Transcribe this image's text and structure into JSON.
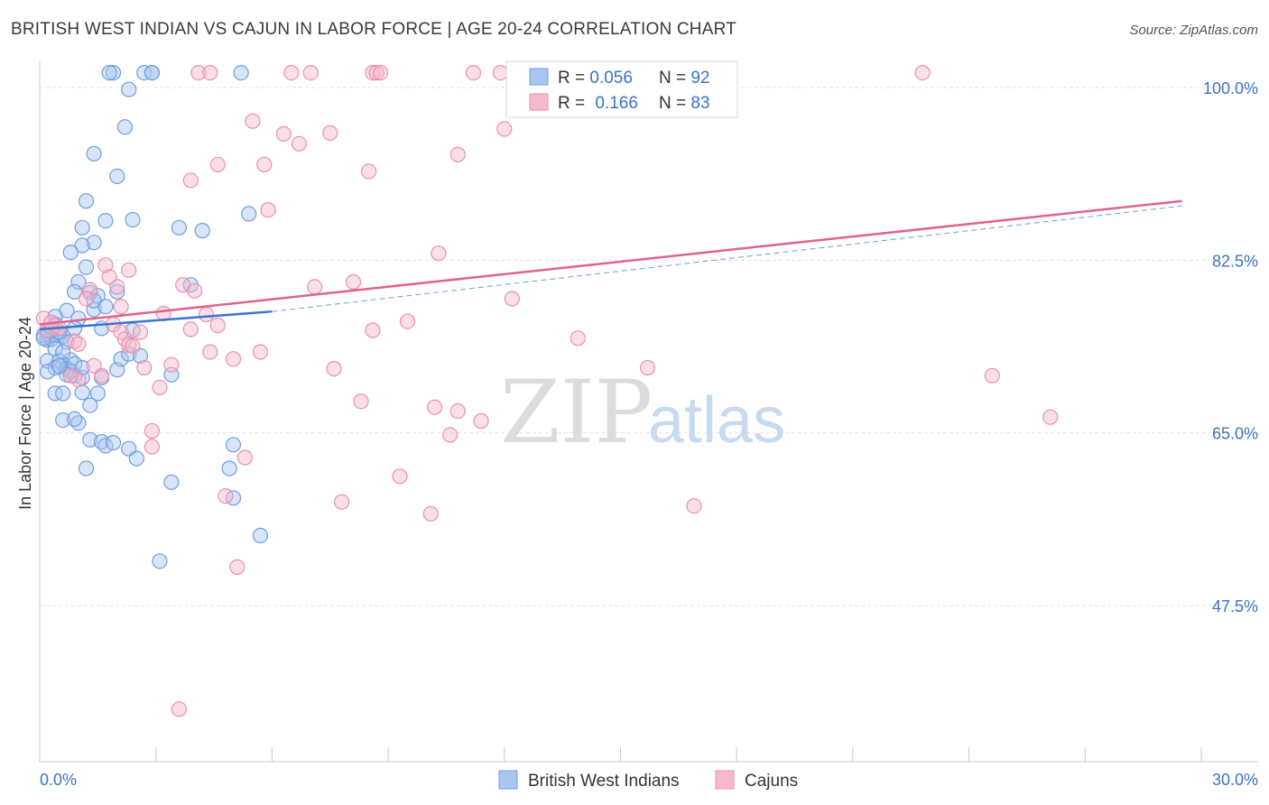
{
  "title": "BRITISH WEST INDIAN VS CAJUN IN LABOR FORCE | AGE 20-24 CORRELATION CHART",
  "source": "Source: ZipAtlas.com",
  "watermark": {
    "zip": "ZIP",
    "atlas": "atlas"
  },
  "colors": {
    "blue_fill": "#a9c6f0",
    "blue_stroke": "#6f9ee0",
    "blue_line": "#3a74cf",
    "pink_fill": "#f6b9cc",
    "pink_stroke": "#ec8fad",
    "pink_line": "#e0638f",
    "grid": "#e3e3e3",
    "axis_label": "#3b72c4"
  },
  "legend": {
    "series": [
      {
        "r_label": "R = ",
        "r_value": "0.056",
        "n_label": "N = ",
        "n_value": "92"
      },
      {
        "r_label": "R = ",
        "r_value": "0.166",
        "n_label": "N = ",
        "n_value": "83"
      }
    ]
  },
  "chart_data": {
    "type": "scatter",
    "title": "BRITISH WEST INDIAN VS CAJUN IN LABOR FORCE | AGE 20-24 CORRELATION CHART",
    "xlabel": "",
    "ylabel": "In Labor Force | Age 20-24",
    "xlim": [
      0,
      30
    ],
    "ylim": [
      30,
      101.5
    ],
    "x_tick_labels": [
      {
        "value": 0,
        "label": "0.0%"
      },
      {
        "value": 30,
        "label": "30.0%"
      }
    ],
    "x_minor_ticks": [
      3,
      6,
      9,
      12,
      15,
      18,
      21,
      24,
      27
    ],
    "y_ticks": [
      {
        "value": 100,
        "label": "100.0%"
      },
      {
        "value": 82.5,
        "label": "82.5%"
      },
      {
        "value": 65,
        "label": "65.0%"
      },
      {
        "value": 47.5,
        "label": "47.5%"
      }
    ],
    "series": [
      {
        "name": "British West Indians",
        "color": "#6f9ee0",
        "r": 0.056,
        "n": 92,
        "trend": {
          "x0": 0,
          "y0": 75.5,
          "x1": 6,
          "y1": 77.3,
          "dashed_to_x": 29.5,
          "dashed_to_y": 88.0
        },
        "points": [
          [
            1.9,
            101.5
          ],
          [
            1.8,
            101.5
          ],
          [
            2.7,
            101.5
          ],
          [
            2.9,
            101.5
          ],
          [
            2.9,
            101.5
          ],
          [
            5.2,
            101.5
          ],
          [
            2.3,
            99.8
          ],
          [
            2.2,
            96.0
          ],
          [
            1.4,
            93.3
          ],
          [
            2.0,
            91.0
          ],
          [
            1.2,
            88.5
          ],
          [
            1.7,
            86.5
          ],
          [
            2.4,
            86.6
          ],
          [
            3.6,
            85.8
          ],
          [
            4.2,
            85.5
          ],
          [
            5.4,
            87.2
          ],
          [
            1.1,
            85.8
          ],
          [
            1.4,
            84.3
          ],
          [
            1.1,
            84.0
          ],
          [
            0.8,
            83.3
          ],
          [
            1.2,
            81.8
          ],
          [
            1.0,
            80.3
          ],
          [
            0.9,
            79.3
          ],
          [
            1.3,
            79.2
          ],
          [
            1.5,
            78.9
          ],
          [
            2.0,
            79.3
          ],
          [
            1.4,
            77.5
          ],
          [
            1.4,
            78.4
          ],
          [
            0.7,
            77.4
          ],
          [
            0.4,
            76.8
          ],
          [
            1.0,
            76.6
          ],
          [
            0.4,
            76.0
          ],
          [
            0.9,
            75.6
          ],
          [
            1.6,
            75.6
          ],
          [
            2.4,
            75.4
          ],
          [
            0.2,
            75.1
          ],
          [
            0.3,
            75.0
          ],
          [
            0.5,
            74.9
          ],
          [
            0.6,
            74.8
          ],
          [
            0.2,
            74.4
          ],
          [
            0.3,
            74.5
          ],
          [
            0.7,
            74.2
          ],
          [
            0.4,
            73.5
          ],
          [
            0.2,
            72.3
          ],
          [
            0.5,
            72.3
          ],
          [
            0.8,
            72.4
          ],
          [
            0.6,
            71.9
          ],
          [
            0.4,
            71.6
          ],
          [
            0.7,
            71.5
          ],
          [
            0.8,
            71.2
          ],
          [
            0.8,
            71.3
          ],
          [
            0.2,
            71.2
          ],
          [
            0.9,
            70.8
          ],
          [
            1.1,
            70.6
          ],
          [
            1.6,
            70.6
          ],
          [
            2.0,
            71.4
          ],
          [
            2.1,
            72.5
          ],
          [
            2.3,
            73.0
          ],
          [
            2.6,
            72.8
          ],
          [
            3.4,
            70.9
          ],
          [
            3.9,
            80.0
          ],
          [
            1.1,
            69.1
          ],
          [
            0.4,
            69.0
          ],
          [
            0.6,
            69.0
          ],
          [
            1.5,
            69.0
          ],
          [
            1.3,
            67.8
          ],
          [
            0.6,
            66.3
          ],
          [
            1.0,
            66.0
          ],
          [
            0.9,
            66.4
          ],
          [
            1.3,
            64.3
          ],
          [
            1.6,
            64.1
          ],
          [
            1.7,
            63.7
          ],
          [
            1.9,
            64.0
          ],
          [
            2.3,
            63.4
          ],
          [
            2.5,
            62.4
          ],
          [
            1.2,
            61.4
          ],
          [
            5.0,
            63.8
          ],
          [
            4.9,
            61.4
          ],
          [
            3.4,
            60.0
          ],
          [
            5.0,
            58.4
          ],
          [
            5.7,
            54.6
          ],
          [
            3.1,
            52.0
          ],
          [
            0.5,
            75.2
          ],
          [
            0.1,
            74.9
          ],
          [
            0.3,
            75.4
          ],
          [
            0.1,
            74.6
          ],
          [
            0.6,
            73.2
          ],
          [
            0.9,
            72.0
          ],
          [
            1.1,
            71.6
          ],
          [
            0.7,
            70.9
          ],
          [
            1.7,
            77.8
          ],
          [
            0.5,
            71.8
          ]
        ]
      },
      {
        "name": "Cajuns",
        "color": "#ec8fad",
        "r": 0.166,
        "n": 83,
        "trend": {
          "x0": 0,
          "y0": 76.0,
          "x1": 29.5,
          "y1": 88.5
        },
        "points": [
          [
            4.1,
            101.5
          ],
          [
            4.4,
            101.5
          ],
          [
            6.5,
            101.5
          ],
          [
            7.0,
            101.5
          ],
          [
            8.6,
            101.5
          ],
          [
            8.7,
            101.5
          ],
          [
            8.8,
            101.5
          ],
          [
            11.2,
            101.5
          ],
          [
            11.9,
            101.5
          ],
          [
            22.8,
            101.5
          ],
          [
            12.0,
            95.8
          ],
          [
            7.5,
            95.4
          ],
          [
            6.3,
            95.3
          ],
          [
            5.5,
            96.6
          ],
          [
            6.7,
            94.3
          ],
          [
            10.8,
            93.2
          ],
          [
            4.6,
            92.2
          ],
          [
            5.8,
            92.2
          ],
          [
            8.5,
            91.5
          ],
          [
            3.9,
            90.6
          ],
          [
            5.9,
            87.6
          ],
          [
            2.3,
            81.5
          ],
          [
            1.7,
            82.0
          ],
          [
            10.3,
            83.2
          ],
          [
            8.1,
            80.3
          ],
          [
            7.1,
            79.8
          ],
          [
            3.7,
            80.0
          ],
          [
            4.0,
            79.4
          ],
          [
            2.0,
            79.8
          ],
          [
            1.3,
            79.5
          ],
          [
            12.2,
            78.6
          ],
          [
            2.1,
            77.8
          ],
          [
            3.2,
            77.1
          ],
          [
            4.3,
            77.0
          ],
          [
            9.5,
            76.3
          ],
          [
            1.9,
            76.0
          ],
          [
            3.9,
            75.5
          ],
          [
            4.6,
            75.9
          ],
          [
            2.1,
            75.2
          ],
          [
            0.4,
            75.9
          ],
          [
            0.2,
            75.4
          ],
          [
            8.6,
            75.4
          ],
          [
            13.9,
            74.6
          ],
          [
            2.2,
            74.5
          ],
          [
            2.3,
            73.9
          ],
          [
            4.4,
            73.2
          ],
          [
            5.7,
            73.2
          ],
          [
            0.9,
            74.3
          ],
          [
            5.0,
            72.5
          ],
          [
            3.4,
            71.9
          ],
          [
            7.6,
            71.5
          ],
          [
            2.7,
            71.6
          ],
          [
            15.7,
            71.6
          ],
          [
            1.6,
            70.8
          ],
          [
            24.6,
            70.8
          ],
          [
            1.0,
            70.4
          ],
          [
            3.1,
            69.6
          ],
          [
            8.3,
            68.2
          ],
          [
            10.2,
            67.6
          ],
          [
            10.8,
            67.2
          ],
          [
            11.4,
            66.2
          ],
          [
            26.1,
            66.6
          ],
          [
            2.9,
            65.2
          ],
          [
            10.6,
            64.8
          ],
          [
            2.9,
            63.6
          ],
          [
            5.3,
            62.5
          ],
          [
            9.3,
            60.6
          ],
          [
            4.8,
            58.6
          ],
          [
            7.8,
            58.0
          ],
          [
            10.1,
            56.8
          ],
          [
            16.9,
            57.6
          ],
          [
            5.1,
            51.4
          ],
          [
            3.6,
            37.0
          ],
          [
            1.0,
            74.0
          ],
          [
            0.1,
            76.6
          ],
          [
            0.5,
            75.6
          ],
          [
            2.4,
            73.8
          ],
          [
            1.8,
            80.8
          ],
          [
            0.8,
            70.8
          ],
          [
            1.4,
            71.8
          ],
          [
            0.3,
            76.2
          ],
          [
            1.2,
            78.6
          ],
          [
            2.6,
            75.2
          ]
        ]
      }
    ]
  },
  "bottom_legend": {
    "blue_label": "British West Indians",
    "pink_label": "Cajuns"
  }
}
